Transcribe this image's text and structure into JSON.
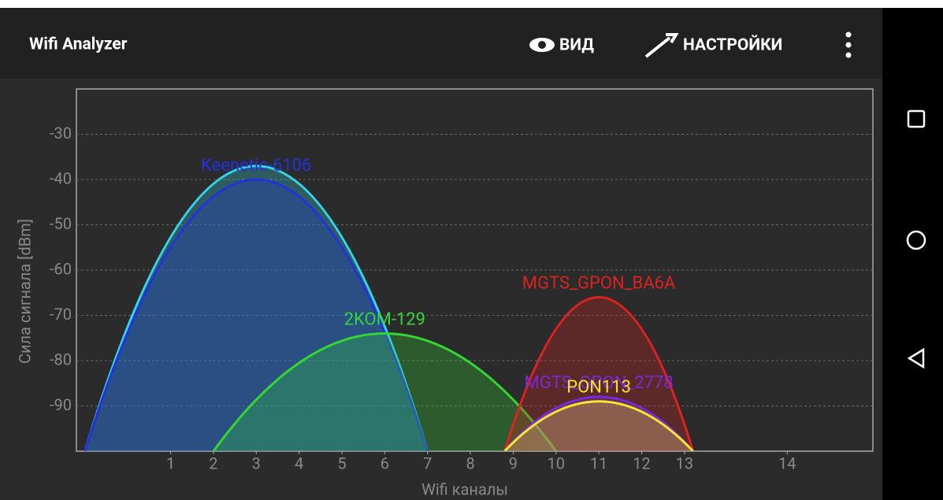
{
  "app_bar": {
    "title": "Wifi Analyzer",
    "actions": [
      "ВИД",
      "НАСТРОЙКИ"
    ]
  },
  "chart_data": {
    "type": "line",
    "xlabel": "Wifi каналы",
    "ylabel": "Сила сигнала [dBm]",
    "xlim": [
      2401,
      2494
    ],
    "xticks": [
      {
        "value": 2412,
        "label": "1"
      },
      {
        "value": 2417,
        "label": "2"
      },
      {
        "value": 2422,
        "label": "3"
      },
      {
        "value": 2427,
        "label": "4"
      },
      {
        "value": 2432,
        "label": "5"
      },
      {
        "value": 2437,
        "label": "6"
      },
      {
        "value": 2442,
        "label": "7"
      },
      {
        "value": 2447,
        "label": "8"
      },
      {
        "value": 2452,
        "label": "9"
      },
      {
        "value": 2457,
        "label": "10"
      },
      {
        "value": 2462,
        "label": "11"
      },
      {
        "value": 2467,
        "label": "12"
      },
      {
        "value": 2472,
        "label": "13"
      },
      {
        "value": 2484,
        "label": "14"
      }
    ],
    "ylim": [
      -100,
      -20
    ],
    "yticks": [
      -90,
      -80,
      -70,
      -60,
      -50,
      -40,
      -30
    ],
    "grid": true,
    "series": [
      {
        "color": "#33d6e8",
        "x": [
          2402,
          2422,
          2442
        ],
        "values": [
          -100,
          -37,
          -100
        ]
      },
      {
        "name": "Keenetic-6106",
        "color": "#2233dd",
        "x": [
          2402,
          2422,
          2442
        ],
        "values": [
          -100,
          -40,
          -100
        ]
      },
      {
        "name": "2KOM-129",
        "color": "#33d633",
        "x": [
          2417,
          2437,
          2457
        ],
        "values": [
          -100,
          -74,
          -100
        ]
      },
      {
        "name": "MGTS_GPON_BA6A",
        "color": "#dd2222",
        "x": [
          2451,
          2462,
          2473
        ],
        "values": [
          -100,
          -66,
          -100
        ]
      },
      {
        "name": "MGTS_GPON_2778",
        "color": "#7a2ad8",
        "x": [
          2451,
          2462,
          2473
        ],
        "values": [
          -100,
          -88,
          -100
        ]
      },
      {
        "name": "PON113",
        "color": "#f2e830",
        "x": [
          2451,
          2462,
          2473
        ],
        "values": [
          -100,
          -89,
          -100
        ]
      }
    ]
  }
}
